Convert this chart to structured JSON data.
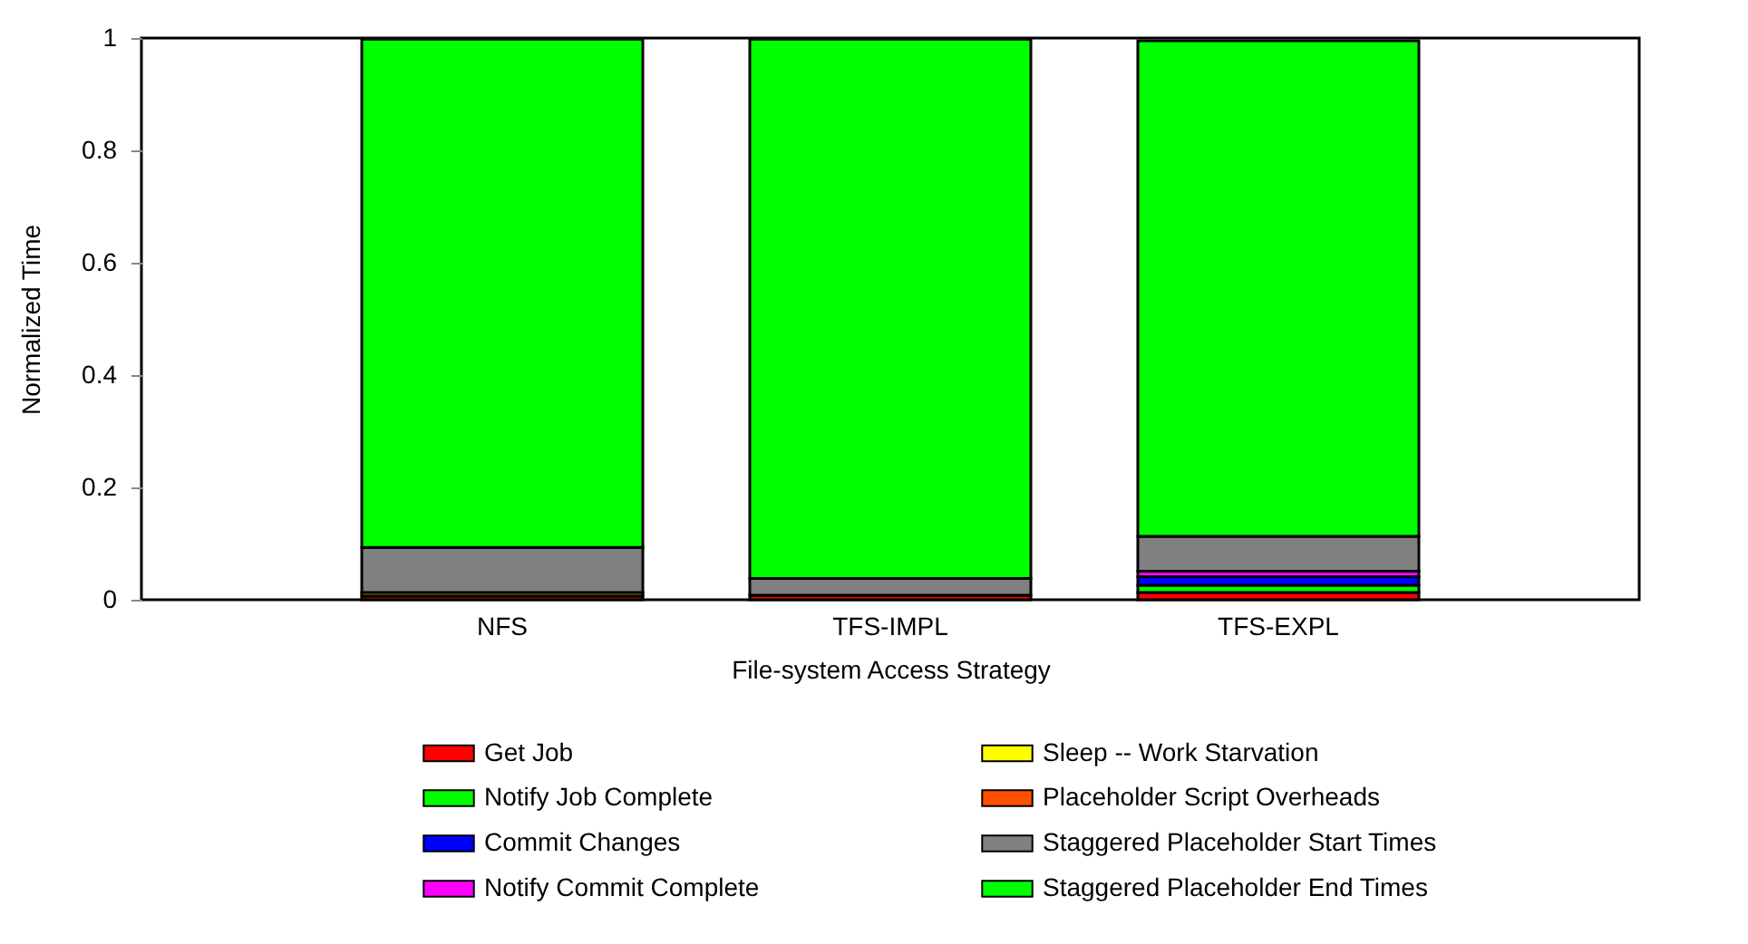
{
  "chart_data": {
    "type": "bar",
    "stacked": true,
    "xlabel": "File-system Access Strategy",
    "ylabel": "Normalized Time",
    "categories": [
      "NFS",
      "TFS-IMPL",
      "TFS-EXPL"
    ],
    "ylim": [
      0,
      1
    ],
    "yticks": [
      0,
      0.2,
      0.4,
      0.6,
      0.8,
      1
    ],
    "grid": false,
    "legend": "bottom",
    "series": [
      {
        "name": "Get Job",
        "color": "#ff0000",
        "values": [
          0.007,
          0.008,
          0.013
        ]
      },
      {
        "name": "Notify Job Complete",
        "color": "#00ff00",
        "values": [
          0,
          0,
          0.013
        ]
      },
      {
        "name": "Commit Changes",
        "color": "#0000ff",
        "values": [
          0,
          0,
          0.015
        ]
      },
      {
        "name": "Notify Commit Complete",
        "color": "#ff00ff",
        "values": [
          0,
          0,
          0.01
        ]
      },
      {
        "name": "Sleep -- Work Starvation",
        "color": "#ffff00",
        "values": [
          0.006,
          0,
          0
        ]
      },
      {
        "name": "Placeholder Script Overheads",
        "color": "#ff5000",
        "values": [
          null,
          null,
          null
        ]
      },
      {
        "name": "Staggered Placeholder Start Times",
        "color": "#808080",
        "values": [
          0.08,
          0.03,
          0.062
        ]
      },
      {
        "name": "Staggered Placeholder End Times",
        "color": "#00ff00",
        "values": [
          0.905,
          0.96,
          0.882
        ]
      }
    ]
  }
}
